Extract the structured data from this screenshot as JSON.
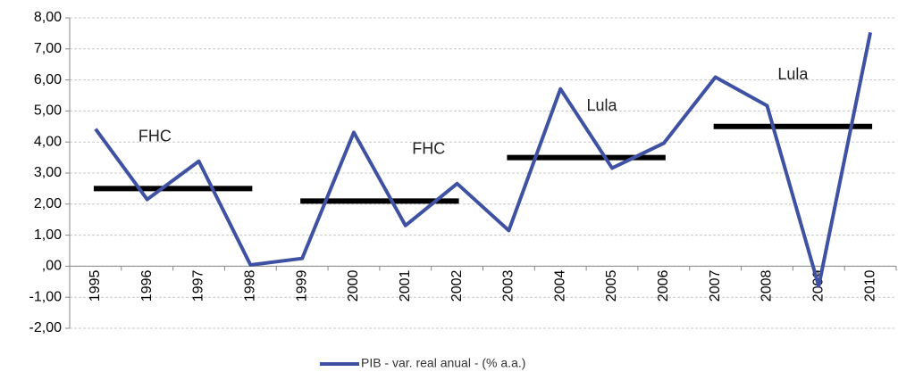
{
  "chart_data": {
    "type": "line",
    "categories": [
      "1995",
      "1996",
      "1997",
      "1998",
      "1999",
      "2000",
      "2001",
      "2002",
      "2003",
      "2004",
      "2005",
      "2006",
      "2007",
      "2008",
      "2009",
      "2010"
    ],
    "series": [
      {
        "name": "PIB - var. real anual - (% a.a.)",
        "color": "#3f51a3",
        "values": [
          4.42,
          2.15,
          3.38,
          0.04,
          0.25,
          4.31,
          1.31,
          2.66,
          1.15,
          5.71,
          3.16,
          3.96,
          6.09,
          5.17,
          -0.64,
          7.53
        ]
      }
    ],
    "periods": [
      {
        "label": "FHC",
        "start": "1995",
        "end": "1998",
        "value": 2.5
      },
      {
        "label": "FHC",
        "start": "1999",
        "end": "2002",
        "value": 2.1
      },
      {
        "label": "Lula",
        "start": "2003",
        "end": "2006",
        "value": 3.5
      },
      {
        "label": "Lula",
        "start": "2007",
        "end": "2010",
        "value": 4.5
      }
    ],
    "period_color": "#000000",
    "ylim": [
      -2,
      8
    ],
    "yticks": [
      {
        "value": -2,
        "label": "-2,00"
      },
      {
        "value": -1,
        "label": "-1,00"
      },
      {
        "value": 0,
        "label": ",00"
      },
      {
        "value": 1,
        "label": "1,00"
      },
      {
        "value": 2,
        "label": "2,00"
      },
      {
        "value": 3,
        "label": "3,00"
      },
      {
        "value": 4,
        "label": "4,00"
      },
      {
        "value": 5,
        "label": "5,00"
      },
      {
        "value": 6,
        "label": "6,00"
      },
      {
        "value": 7,
        "label": "7,00"
      },
      {
        "value": 8,
        "label": "8,00"
      }
    ],
    "grid": true,
    "legend": "bottom"
  }
}
